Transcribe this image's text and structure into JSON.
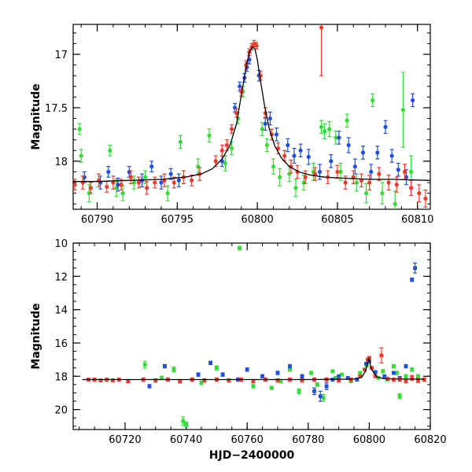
{
  "chart_data": [
    {
      "type": "scatter",
      "title": "",
      "xlabel": "",
      "ylabel": "Magnitude",
      "xlim": [
        60788.5,
        60810.8
      ],
      "ylim": [
        18.45,
        16.72
      ],
      "y_inverted": true,
      "grid": false,
      "x_ticks": [
        "60790",
        "60795",
        "60800",
        "60805",
        "60810"
      ],
      "y_ticks": [
        "17",
        "17.5",
        "18"
      ],
      "series_colors": {
        "green": "#33dd33",
        "blue": "#1f4fe0",
        "red": "#f23a2a",
        "model": "#000000"
      },
      "model_curve": {
        "x": [
          60788.5,
          60790,
          60792,
          60794,
          60795.5,
          60796.5,
          60797.2,
          60797.8,
          60798.3,
          60798.7,
          60799.0,
          60799.3,
          60799.5,
          60799.7,
          60799.85,
          60800.0,
          60800.2,
          60800.45,
          60800.75,
          60801.1,
          60801.5,
          60802.0,
          60802.6,
          60803.3,
          60804.2,
          60805.5,
          60807.0,
          60808.5,
          60810.8
        ],
        "y": [
          18.19,
          18.19,
          18.18,
          18.17,
          18.15,
          18.12,
          18.07,
          17.98,
          17.85,
          17.65,
          17.38,
          17.12,
          16.98,
          16.93,
          16.95,
          17.05,
          17.25,
          17.48,
          17.7,
          17.86,
          17.97,
          18.05,
          18.1,
          18.13,
          18.15,
          18.16,
          18.17,
          18.17,
          18.18
        ]
      },
      "series": [
        {
          "color": "green",
          "x": [
            60788.9,
            60789.0,
            60789.5,
            60790.8,
            60791.2,
            60791.6,
            60792.3,
            60793.0,
            60794.4,
            60795.2,
            60796.3,
            60797.0,
            60798.0,
            60798.4,
            60798.8,
            60799.1,
            60800.3,
            60800.6,
            60801.0,
            60801.4,
            60802.0,
            60802.4,
            60802.9,
            60803.5,
            60804.0,
            60804.2,
            60804.5,
            60804.9,
            60805.2,
            60805.6,
            60806.2,
            60806.8,
            60807.2,
            60807.8,
            60808.6,
            60809.1,
            60809.6
          ],
          "y": [
            17.7,
            17.95,
            18.3,
            17.9,
            18.25,
            18.3,
            18.2,
            18.15,
            18.3,
            17.82,
            18.05,
            17.76,
            18.02,
            17.88,
            17.6,
            17.35,
            17.7,
            17.85,
            18.05,
            18.15,
            18.12,
            18.25,
            18.2,
            18.1,
            17.68,
            17.72,
            17.7,
            17.78,
            18.1,
            17.62,
            18.2,
            18.3,
            17.43,
            18.3,
            18.4,
            17.52,
            18.1
          ],
          "err": [
            0.05,
            0.06,
            0.08,
            0.05,
            0.08,
            0.07,
            0.06,
            0.06,
            0.07,
            0.06,
            0.07,
            0.06,
            0.07,
            0.06,
            0.05,
            0.05,
            0.06,
            0.06,
            0.07,
            0.08,
            0.07,
            0.08,
            0.07,
            0.08,
            0.06,
            0.07,
            0.07,
            0.06,
            0.08,
            0.06,
            0.08,
            0.09,
            0.06,
            0.1,
            0.12,
            0.35,
            0.15
          ]
        },
        {
          "color": "blue",
          "x": [
            60789.2,
            60790.2,
            60790.7,
            60791.3,
            60792.0,
            60792.8,
            60793.4,
            60794.0,
            60794.6,
            60795.1,
            60797.8,
            60798.6,
            60798.9,
            60799.2,
            60799.35,
            60799.5,
            60800.1,
            60800.5,
            60800.8,
            60801.2,
            60801.9,
            60802.3,
            60802.7,
            60803.2,
            60803.9,
            60804.6,
            60805.1,
            60805.7,
            60806.1,
            60806.6,
            60807.1,
            60807.5,
            60808.0,
            60808.4,
            60808.8,
            60809.3,
            60809.7
          ],
          "y": [
            18.15,
            18.2,
            18.1,
            18.22,
            18.1,
            18.18,
            18.05,
            18.2,
            18.12,
            18.18,
            18.0,
            17.5,
            17.3,
            17.22,
            17.12,
            17.05,
            17.2,
            17.65,
            17.6,
            17.75,
            17.85,
            17.95,
            17.9,
            17.96,
            18.1,
            18.0,
            17.78,
            17.85,
            18.05,
            17.92,
            18.1,
            17.92,
            17.68,
            17.95,
            18.08,
            18.15,
            17.43
          ],
          "err": [
            0.05,
            0.06,
            0.05,
            0.06,
            0.05,
            0.06,
            0.05,
            0.06,
            0.05,
            0.06,
            0.05,
            0.04,
            0.04,
            0.04,
            0.04,
            0.04,
            0.05,
            0.06,
            0.06,
            0.06,
            0.06,
            0.07,
            0.06,
            0.07,
            0.07,
            0.06,
            0.06,
            0.07,
            0.07,
            0.06,
            0.07,
            0.06,
            0.06,
            0.06,
            0.06,
            0.07,
            0.06
          ]
        },
        {
          "color": "red",
          "x": [
            60788.6,
            60789.1,
            60789.6,
            60790.1,
            60790.6,
            60791.0,
            60791.5,
            60792.1,
            60792.6,
            60793.1,
            60793.6,
            60794.2,
            60794.8,
            60795.4,
            60795.9,
            60796.4,
            60797.4,
            60797.8,
            60798.1,
            60798.4,
            60798.7,
            60799.0,
            60799.3,
            60799.5,
            60799.65,
            60799.8,
            60799.95,
            60800.2,
            60800.5,
            60800.9,
            60801.3,
            60801.7,
            60802.1,
            60802.5,
            60803.0,
            60803.6,
            60804.0,
            60804.4,
            60805.0,
            60805.5,
            60806.0,
            60806.5,
            60807.0,
            60807.6,
            60808.2,
            60808.7,
            60809.2,
            60809.6,
            60810.1,
            60810.5
          ],
          "y": [
            18.22,
            18.2,
            18.25,
            18.18,
            18.24,
            18.2,
            18.22,
            18.15,
            18.2,
            18.25,
            18.2,
            18.18,
            18.2,
            18.15,
            18.18,
            18.12,
            18.0,
            17.9,
            17.85,
            17.7,
            17.55,
            17.35,
            17.1,
            16.98,
            16.93,
            16.9,
            16.92,
            17.2,
            17.55,
            17.75,
            17.88,
            17.95,
            18.05,
            18.1,
            18.15,
            18.12,
            16.75,
            18.15,
            18.1,
            18.2,
            18.15,
            18.18,
            18.2,
            18.12,
            18.2,
            18.22,
            18.1,
            18.25,
            18.3,
            18.35
          ],
          "err": [
            0.05,
            0.06,
            0.05,
            0.06,
            0.05,
            0.06,
            0.05,
            0.06,
            0.05,
            0.06,
            0.05,
            0.06,
            0.05,
            0.06,
            0.05,
            0.06,
            0.05,
            0.05,
            0.05,
            0.04,
            0.04,
            0.04,
            0.04,
            0.03,
            0.03,
            0.03,
            0.03,
            0.04,
            0.05,
            0.05,
            0.05,
            0.05,
            0.06,
            0.06,
            0.06,
            0.06,
            0.45,
            0.06,
            0.06,
            0.06,
            0.06,
            0.06,
            0.07,
            0.06,
            0.07,
            0.07,
            0.07,
            0.07,
            0.08,
            0.08
          ]
        }
      ]
    },
    {
      "type": "scatter",
      "title": "",
      "xlabel": "HJD−2400000",
      "ylabel": "Magnitude",
      "xlim": [
        60703,
        60820
      ],
      "ylim": [
        21.2,
        10
      ],
      "y_inverted": true,
      "grid": false,
      "x_ticks": [
        "60720",
        "60740",
        "60760",
        "60780",
        "60800",
        "60820"
      ],
      "y_ticks": [
        "10",
        "12",
        "14",
        "16",
        "18",
        "20"
      ],
      "series_colors": {
        "green": "#33dd33",
        "blue": "#1f4fe0",
        "red": "#f23a2a",
        "model": "#000000"
      },
      "model_curve": {
        "x": [
          60706,
          60720,
          60740,
          60760,
          60780,
          60795,
          60797.5,
          60798.8,
          60799.8,
          60800.8,
          60802.5,
          60805,
          60818
        ],
        "y": [
          18.2,
          18.2,
          18.2,
          18.2,
          18.2,
          18.17,
          18.07,
          17.7,
          16.93,
          17.6,
          18.05,
          18.15,
          18.18
        ]
      },
      "series": [
        {
          "color": "green",
          "x": [
            60726.5,
            60732,
            60736,
            60739,
            60740,
            60745,
            60750,
            60757.5,
            60762,
            60768,
            60771,
            60774,
            60777,
            60781,
            60783,
            60785,
            60788,
            60789,
            60791,
            60794,
            60797,
            60799.2,
            60803,
            60804.5,
            60806,
            60808,
            60809,
            60810,
            60812,
            60814,
            60816
          ],
          "y": [
            17.3,
            18.1,
            17.6,
            20.7,
            20.9,
            18.4,
            17.5,
            10.3,
            18.6,
            18.7,
            18.3,
            17.6,
            18.9,
            17.8,
            18.5,
            19.3,
            17.7,
            18.1,
            17.9,
            18.3,
            17.8,
            17.35,
            18.1,
            17.7,
            18.2,
            17.4,
            17.8,
            19.2,
            18.0,
            17.6,
            18.0
          ],
          "err": [
            0.2,
            0.1,
            0.15,
            0.25,
            0.15,
            0.1,
            0.12,
            0.1,
            0.1,
            0.1,
            0.1,
            0.1,
            0.15,
            0.1,
            0.1,
            0.2,
            0.08,
            0.08,
            0.08,
            0.08,
            0.08,
            0.08,
            0.08,
            0.1,
            0.08,
            0.1,
            0.1,
            0.15,
            0.1,
            0.1,
            0.1
          ]
        },
        {
          "color": "blue",
          "x": [
            60728,
            60733,
            60738,
            60744,
            60748,
            60752,
            60757,
            60760,
            60765,
            60770,
            60774,
            60778,
            60782,
            60784,
            60786,
            60788,
            60790,
            60793,
            60796,
            60799,
            60800,
            60802,
            60805,
            60808,
            60810,
            60812,
            60814,
            60815
          ],
          "y": [
            18.6,
            17.4,
            18.3,
            17.9,
            17.2,
            17.9,
            18.2,
            17.6,
            18.0,
            17.8,
            17.4,
            18.0,
            18.9,
            19.2,
            18.6,
            18.2,
            18.0,
            18.1,
            18.2,
            17.25,
            17.1,
            17.75,
            18.0,
            17.8,
            18.1,
            17.4,
            12.2,
            11.5
          ],
          "err": [
            0.1,
            0.1,
            0.1,
            0.1,
            0.1,
            0.1,
            0.1,
            0.1,
            0.1,
            0.1,
            0.1,
            0.1,
            0.2,
            0.3,
            0.2,
            0.08,
            0.08,
            0.08,
            0.08,
            0.06,
            0.06,
            0.08,
            0.08,
            0.08,
            0.08,
            0.1,
            0.1,
            0.3
          ]
        },
        {
          "color": "red",
          "x": [
            60708,
            60710,
            60712,
            60714,
            60716,
            60718,
            60721,
            60726,
            60730,
            60734,
            60738,
            60742,
            60746,
            60750,
            60754,
            60758,
            60762,
            60766,
            60770,
            60774,
            60778,
            60782,
            60786,
            60790,
            60794,
            60797,
            60798.5,
            60799.5,
            60800,
            60800.8,
            60802,
            60804,
            60806,
            60808,
            60810,
            60812,
            60814,
            60816,
            60818
          ],
          "y": [
            18.2,
            18.2,
            18.25,
            18.2,
            18.25,
            18.2,
            18.3,
            18.2,
            18.25,
            18.2,
            18.3,
            18.2,
            18.25,
            18.2,
            18.25,
            18.2,
            18.3,
            18.2,
            18.25,
            18.2,
            18.25,
            18.2,
            18.2,
            18.25,
            18.2,
            18.0,
            17.6,
            17.0,
            16.9,
            17.5,
            18.0,
            16.75,
            18.15,
            18.2,
            18.2,
            18.3,
            18.1,
            18.25,
            18.2
          ],
          "err": [
            0.08,
            0.08,
            0.08,
            0.08,
            0.08,
            0.08,
            0.08,
            0.1,
            0.1,
            0.1,
            0.1,
            0.1,
            0.1,
            0.1,
            0.1,
            0.1,
            0.1,
            0.1,
            0.1,
            0.1,
            0.1,
            0.1,
            0.1,
            0.1,
            0.1,
            0.08,
            0.06,
            0.05,
            0.05,
            0.06,
            0.08,
            0.45,
            0.08,
            0.08,
            0.1,
            0.1,
            0.15,
            0.12,
            0.1
          ]
        }
      ]
    }
  ]
}
